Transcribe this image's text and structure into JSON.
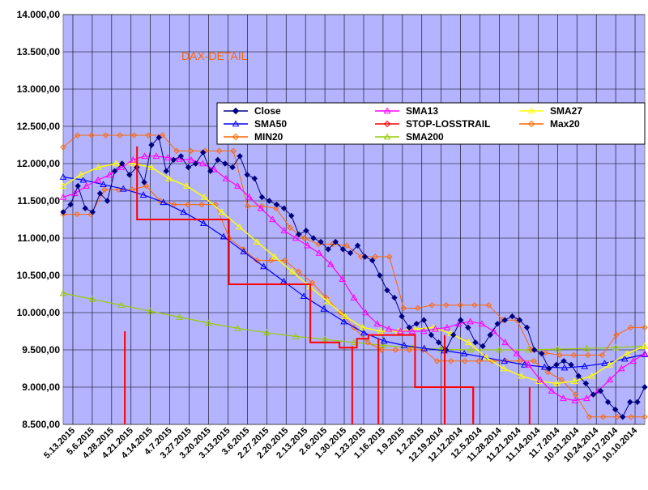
{
  "chart_data": {
    "type": "line",
    "title": "DAX-DETAIL",
    "xlabel": "",
    "ylabel": "",
    "ylim": [
      8500,
      14000
    ],
    "y_ticks": [
      8500,
      9000,
      9500,
      10000,
      10500,
      11000,
      11500,
      12000,
      12500,
      13000,
      13500,
      14000
    ],
    "y_tick_labels": [
      "8.500,00",
      "9.000,00",
      "9.500,00",
      "10.000,00",
      "10.500,00",
      "11.000,00",
      "11.500,00",
      "12.000,00",
      "12.500,00",
      "13.000,00",
      "13.500,00",
      "14.000,00"
    ],
    "x_tick_labels": [
      "5.13.2015",
      "5.6.2015",
      "4.28.2015",
      "4.21.2015",
      "4.14.2015",
      "4.7.2015",
      "3.27.2015",
      "3.20.2015",
      "3.13.2015",
      "3.6.2015",
      "2.27.2015",
      "2.20.2015",
      "2.13.2015",
      "2.6.2015",
      "1.30.2015",
      "1.23.2015",
      "1.16.2015",
      "1.9.2015",
      "1.2.2015",
      "12.19.2014",
      "12.12.2014",
      "12.5.2014",
      "11.28.2014",
      "11.21.2014",
      "11.14.2014",
      "11.7.2014",
      "10.31.2014",
      "10.24.2014",
      "10.17.2014",
      "10.10.2014"
    ],
    "grid": true,
    "legend_position": "top-right",
    "colors": {
      "plot_bg": "#b3b3ff",
      "close": "#000080",
      "sma13": "#ff00ff",
      "sma27": "#ffff00",
      "sma50": "#0000ff",
      "stop": "#ff0000",
      "max20": "#ff6600",
      "min20": "#ff6600",
      "sma200": "#99cc00",
      "title": "#ff6600"
    },
    "series": [
      {
        "name": "Close",
        "key": "close",
        "values": [
          11350,
          11450,
          11700,
          11400,
          11350,
          11600,
          11500,
          11900,
          12000,
          11850,
          11950,
          11750,
          12250,
          12350,
          11900,
          12050,
          12100,
          11950,
          12000,
          12150,
          11900,
          12050,
          12000,
          11950,
          12100,
          11850,
          11800,
          11550,
          11500,
          11450,
          11400,
          11300,
          11050,
          11100,
          11000,
          10950,
          10850,
          10950,
          10850,
          10800,
          10900,
          10750,
          10700,
          10500,
          10300,
          10200,
          9950,
          9800,
          9850,
          9900,
          9700,
          9600,
          9500,
          9700,
          9900,
          9800,
          9600,
          9550,
          9700,
          9850,
          9900,
          9950,
          9900,
          9800,
          9500,
          9450,
          9250,
          9300,
          9350,
          9300,
          9150,
          9050,
          8900,
          8950,
          8800,
          8700,
          8600,
          8800,
          8800,
          9000
        ]
      },
      {
        "name": "SMA13",
        "key": "sma13",
        "values": [
          11550,
          11600,
          11700,
          11780,
          11850,
          11950,
          12050,
          12100,
          12100,
          12080,
          12060,
          12050,
          12000,
          11920,
          11800,
          11700,
          11550,
          11400,
          11250,
          11100,
          11000,
          10900,
          10800,
          10650,
          10450,
          10200,
          10000,
          9850,
          9780,
          9750,
          9750,
          9750,
          9780,
          9800,
          9850,
          9880,
          9850,
          9750,
          9600,
          9450,
          9300,
          9100,
          8950,
          8850,
          8820,
          8850,
          8950,
          9100,
          9250,
          9350,
          9450
        ]
      },
      {
        "name": "SMA27",
        "key": "sma27",
        "values": [
          11700,
          11850,
          11950,
          12000,
          12000,
          11950,
          11800,
          11700,
          11550,
          11350,
          11150,
          10950,
          10750,
          10550,
          10350,
          10150,
          9950,
          9800,
          9750,
          9750,
          9780,
          9800,
          9720,
          9600,
          9400,
          9250,
          9150,
          9080,
          9050,
          9080,
          9150,
          9300,
          9450,
          9550
        ]
      },
      {
        "name": "SMA50",
        "key": "sma50",
        "values": [
          11820,
          11780,
          11720,
          11660,
          11580,
          11480,
          11350,
          11200,
          11020,
          10820,
          10620,
          10420,
          10220,
          10050,
          9880,
          9730,
          9620,
          9560,
          9520,
          9490,
          9450,
          9400,
          9350,
          9300,
          9270,
          9260,
          9280,
          9320,
          9380,
          9440
        ]
      },
      {
        "name": "STOP-LOSSTRAIL",
        "key": "stop",
        "points": [
          [
            0.127,
            12230
          ],
          [
            0.127,
            11250
          ],
          [
            0.285,
            11250
          ],
          [
            0.285,
            10380
          ],
          [
            0.425,
            10380
          ],
          [
            0.425,
            9600
          ],
          [
            0.475,
            9600
          ],
          [
            0.475,
            9530
          ],
          [
            0.505,
            9530
          ],
          [
            0.505,
            9650
          ],
          [
            0.525,
            9650
          ],
          [
            0.525,
            9700
          ],
          [
            0.605,
            9700
          ],
          [
            0.605,
            9000
          ],
          [
            0.705,
            9000
          ],
          [
            0.705,
            8550
          ]
        ]
      },
      {
        "name": "Max20",
        "key": "max20",
        "values": [
          12220,
          12380,
          12380,
          12380,
          12380,
          12380,
          12380,
          12380,
          12170,
          12170,
          12170,
          12170,
          12170,
          11430,
          11430,
          11400,
          11140,
          11000,
          10920,
          10920,
          10900,
          10750,
          10750,
          10750,
          10060,
          10060,
          10100,
          10100,
          10100,
          10100,
          10100,
          9900,
          9900,
          9500,
          9460,
          9430,
          9430,
          9430,
          9430,
          9700,
          9800,
          9800
        ]
      },
      {
        "name": "MIN20",
        "key": "min20",
        "values": [
          11320,
          11320,
          11320,
          11650,
          11650,
          11650,
          11700,
          11500,
          11450,
          11450,
          11450,
          11450,
          11000,
          10850,
          10700,
          10700,
          10700,
          10550,
          10400,
          10200,
          10000,
          9800,
          9600,
          9500,
          9500,
          9500,
          9500,
          9350,
          9350,
          9350,
          9350,
          9350,
          9350,
          9350,
          9350,
          9200,
          9100,
          8900,
          8600,
          8600,
          8600,
          8600,
          8600
        ]
      },
      {
        "name": "SMA200",
        "key": "sma200",
        "values": [
          10260,
          10180,
          10100,
          10020,
          9940,
          9860,
          9790,
          9730,
          9680,
          9640,
          9600,
          9560,
          9530,
          9510,
          9500,
          9500,
          9500,
          9510,
          9520,
          9530,
          9550
        ]
      }
    ],
    "stop_spikes": [
      {
        "x": 0.106,
        "from": 9750,
        "to": 8500
      },
      {
        "x": 0.497,
        "from": 9550,
        "to": 8500
      },
      {
        "x": 0.542,
        "from": 9650,
        "to": 8500
      },
      {
        "x": 0.656,
        "from": 9700,
        "to": 8500
      },
      {
        "x": 0.705,
        "from": 9000,
        "to": 8500
      },
      {
        "x": 0.802,
        "from": 9000,
        "to": 8500
      }
    ]
  }
}
